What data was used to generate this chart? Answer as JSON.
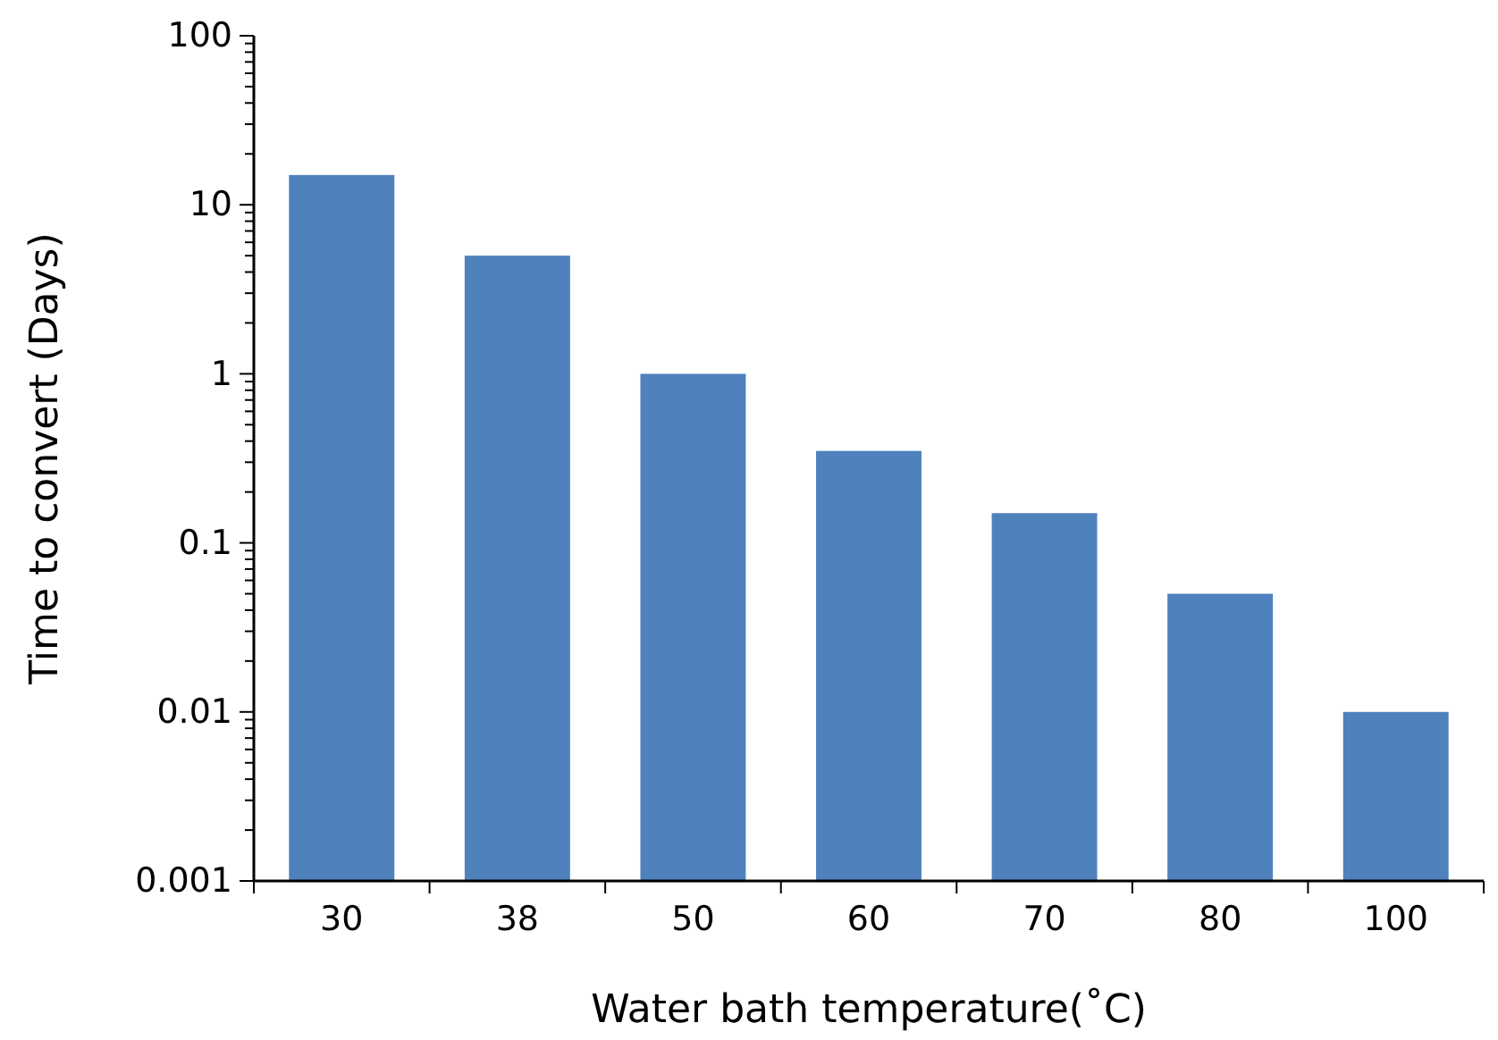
{
  "chart_data": {
    "type": "bar",
    "xlabel": "Water bath temperature(˚C)",
    "ylabel": "Time to convert (Days)",
    "categories": [
      "30",
      "38",
      "50",
      "60",
      "70",
      "80",
      "100"
    ],
    "values": [
      15,
      5,
      1,
      0.35,
      0.15,
      0.05,
      0.01
    ],
    "color": "#4f81bd",
    "log": true,
    "grid": false,
    "ylim": [
      0.001,
      100
    ],
    "yticks": [
      {
        "value": 0.001,
        "label": "0.001"
      },
      {
        "value": 0.002,
        "label": null
      },
      {
        "value": 0.003,
        "label": null
      },
      {
        "value": 0.004,
        "label": null
      },
      {
        "value": 0.005,
        "label": null
      },
      {
        "value": 0.006,
        "label": null
      },
      {
        "value": 0.007,
        "label": null
      },
      {
        "value": 0.008,
        "label": null
      },
      {
        "value": 0.009,
        "label": null
      },
      {
        "value": 0.01,
        "label": "0.01"
      },
      {
        "value": 0.02,
        "label": null
      },
      {
        "value": 0.03,
        "label": null
      },
      {
        "value": 0.04,
        "label": null
      },
      {
        "value": 0.05,
        "label": null
      },
      {
        "value": 0.06,
        "label": null
      },
      {
        "value": 0.07,
        "label": null
      },
      {
        "value": 0.08,
        "label": null
      },
      {
        "value": 0.09,
        "label": null
      },
      {
        "value": 0.1,
        "label": "0.1"
      },
      {
        "value": 0.2,
        "label": null
      },
      {
        "value": 0.3,
        "label": null
      },
      {
        "value": 0.4,
        "label": null
      },
      {
        "value": 0.5,
        "label": null
      },
      {
        "value": 0.6,
        "label": null
      },
      {
        "value": 0.7,
        "label": null
      },
      {
        "value": 0.8,
        "label": null
      },
      {
        "value": 0.9,
        "label": null
      },
      {
        "value": 1,
        "label": "1"
      },
      {
        "value": 2,
        "label": null
      },
      {
        "value": 3,
        "label": null
      },
      {
        "value": 4,
        "label": null
      },
      {
        "value": 5,
        "label": null
      },
      {
        "value": 6,
        "label": null
      },
      {
        "value": 7,
        "label": null
      },
      {
        "value": 8,
        "label": null
      },
      {
        "value": 9,
        "label": null
      },
      {
        "value": 10,
        "label": "10"
      },
      {
        "value": 20,
        "label": null
      },
      {
        "value": 30,
        "label": null
      },
      {
        "value": 40,
        "label": null
      },
      {
        "value": 50,
        "label": null
      },
      {
        "value": 60,
        "label": null
      },
      {
        "value": 70,
        "label": null
      },
      {
        "value": 80,
        "label": null
      },
      {
        "value": 90,
        "label": null
      },
      {
        "value": 100,
        "label": "100"
      }
    ]
  }
}
